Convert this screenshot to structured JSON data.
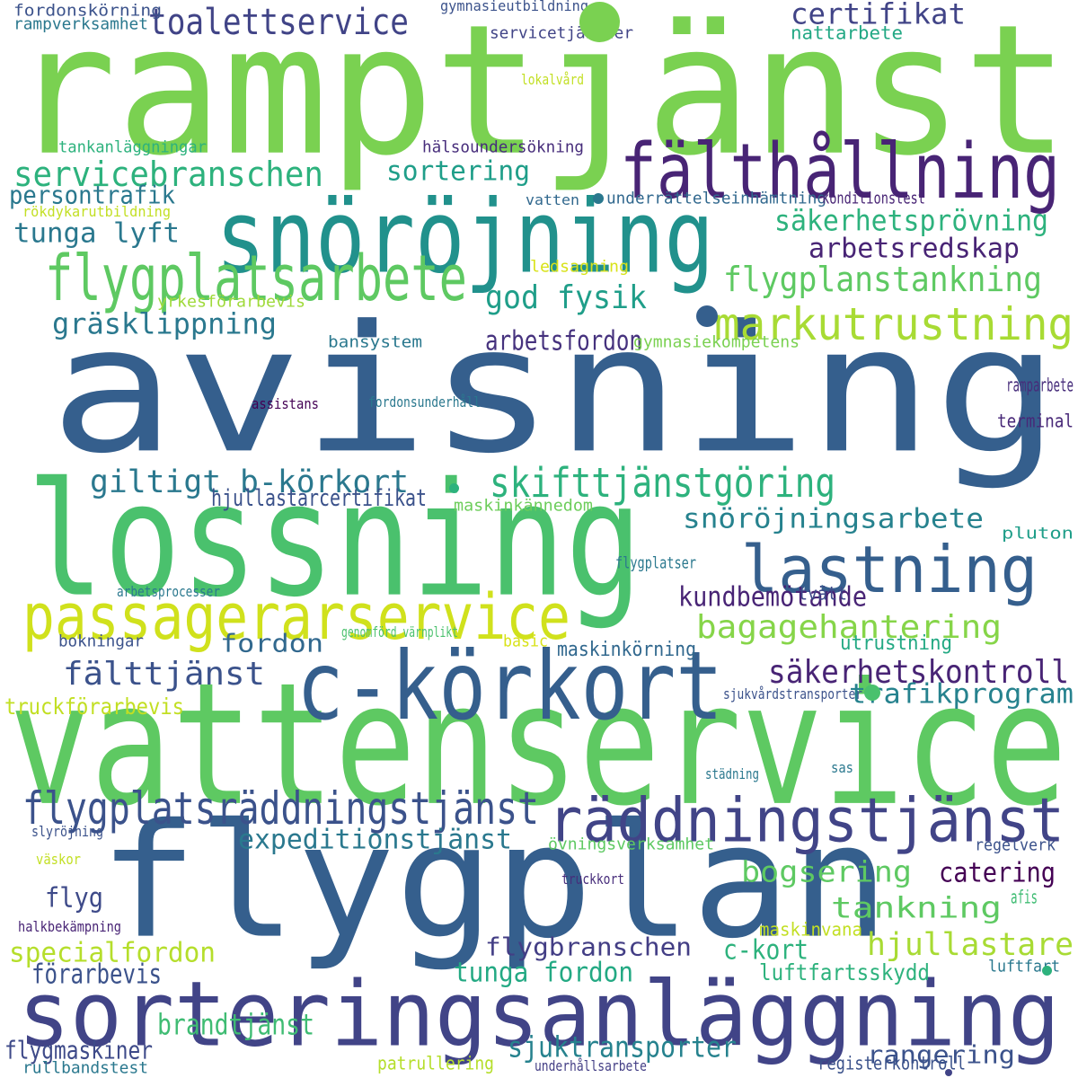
{
  "words": [
    {
      "text": "ramptjänst",
      "color": "#7ad151"
    },
    {
      "text": "avisning",
      "color": "#355f8d"
    },
    {
      "text": "vattenservice",
      "color": "#5ec962"
    },
    {
      "text": "lossning",
      "color": "#4ac16d"
    },
    {
      "text": "flygplan",
      "color": "#355f8d"
    },
    {
      "text": "sorteringsanläggning",
      "color": "#414487"
    },
    {
      "text": "snöröjning",
      "color": "#21918c"
    },
    {
      "text": "c-körkort",
      "color": "#355f8d"
    },
    {
      "text": "fälthållning",
      "color": "#482475"
    },
    {
      "text": "flygplatsarbete",
      "color": "#5ec962"
    },
    {
      "text": "passagerarservice",
      "color": "#d0e11c"
    },
    {
      "text": "räddningstjänst",
      "color": "#414487"
    },
    {
      "text": "lastning",
      "color": "#355f8d"
    },
    {
      "text": "markutrustning",
      "color": "#a8db34"
    },
    {
      "text": "flygplatsräddningstjänst",
      "color": "#3b528b"
    },
    {
      "text": "skifttjänstgöring",
      "color": "#2db27d"
    },
    {
      "text": "servicebranschen",
      "color": "#2db27d"
    },
    {
      "text": "toalettservice",
      "color": "#414487"
    },
    {
      "text": "flygplanstankning",
      "color": "#5ec962"
    },
    {
      "text": "certifikat",
      "color": "#414487"
    },
    {
      "text": "säkerhetsprövning",
      "color": "#2db27d"
    },
    {
      "text": "arbetsredskap",
      "color": "#482475"
    },
    {
      "text": "god fysik",
      "color": "#1f9e89"
    },
    {
      "text": "tunga lyft",
      "color": "#2a788e"
    },
    {
      "text": "persontrafik",
      "color": "#2a788e"
    },
    {
      "text": "gräsklippning",
      "color": "#2a788e"
    },
    {
      "text": "sortering",
      "color": "#1f9e89"
    },
    {
      "text": "arbetsfordon",
      "color": "#46327e"
    },
    {
      "text": "giltigt b-körkort",
      "color": "#2a788e"
    },
    {
      "text": "snöröjningsarbete",
      "color": "#26828e"
    },
    {
      "text": "bagagehantering",
      "color": "#86d549"
    },
    {
      "text": "kundbemötande",
      "color": "#482475"
    },
    {
      "text": "fordon",
      "color": "#31688e"
    },
    {
      "text": "fälttjänst",
      "color": "#3b528b"
    },
    {
      "text": "säkerhetskontroll",
      "color": "#482475"
    },
    {
      "text": "trafikprogram",
      "color": "#26828e"
    },
    {
      "text": "expeditionstjänst",
      "color": "#2a788e"
    },
    {
      "text": "bogsering",
      "color": "#5ec962"
    },
    {
      "text": "tankning",
      "color": "#5ec962"
    },
    {
      "text": "catering",
      "color": "#440154"
    },
    {
      "text": "flyg",
      "color": "#3e4a89"
    },
    {
      "text": "flygbranschen",
      "color": "#433e85"
    },
    {
      "text": "c-kort",
      "color": "#2db27d"
    },
    {
      "text": "hjullastare",
      "color": "#a8db34"
    },
    {
      "text": "specialfordon",
      "color": "#b5de2b"
    },
    {
      "text": "förarbevis",
      "color": "#3b528b"
    },
    {
      "text": "tunga fordon",
      "color": "#23a983"
    },
    {
      "text": "luftfartsskydd",
      "color": "#2db27d"
    },
    {
      "text": "brandtjänst",
      "color": "#3fbc73"
    },
    {
      "text": "sjuktransporter",
      "color": "#26828e"
    },
    {
      "text": "rangering",
      "color": "#3b528b"
    },
    {
      "text": "flygmaskiner",
      "color": "#3e4a89"
    },
    {
      "text": "hjullastarcertifikat",
      "color": "#3b528b"
    },
    {
      "text": "utrustning",
      "color": "#23a983"
    },
    {
      "text": "maskinkörning",
      "color": "#31688e"
    },
    {
      "text": "truckförarbevis",
      "color": "#c2df23"
    },
    {
      "text": "fordonskörning",
      "color": "#3b528b"
    },
    {
      "text": "rampverksamhet",
      "color": "#2a788e"
    },
    {
      "text": "gymnasieutbildning",
      "color": "#3b528b"
    },
    {
      "text": "servicetjänster",
      "color": "#414487"
    },
    {
      "text": "nattarbete",
      "color": "#22a884"
    },
    {
      "text": "lokalvård",
      "color": "#c2df23"
    },
    {
      "text": "tankanläggningar",
      "color": "#2db27d"
    },
    {
      "text": "hälsoundersökning",
      "color": "#472d7b"
    },
    {
      "text": "underrättelseinhämtning",
      "color": "#31688e"
    },
    {
      "text": "konditionstest",
      "color": "#482475"
    },
    {
      "text": "vatten",
      "color": "#31688e"
    },
    {
      "text": "rökdykarutbildning",
      "color": "#c2df23"
    },
    {
      "text": "ledsagning",
      "color": "#d8e219"
    },
    {
      "text": "yrkesförarbevis",
      "color": "#9fda3a"
    },
    {
      "text": "bansystem",
      "color": "#2a788e"
    },
    {
      "text": "gymnasiekompetens",
      "color": "#7ad151"
    },
    {
      "text": "ramparbete",
      "color": "#472d7b"
    },
    {
      "text": "terminal",
      "color": "#482878"
    },
    {
      "text": "assistans",
      "color": "#440154"
    },
    {
      "text": "fordonsunderhåll",
      "color": "#2a788e"
    },
    {
      "text": "maskinkännedom",
      "color": "#6ccd5a"
    },
    {
      "text": "pluton",
      "color": "#1f9e89"
    },
    {
      "text": "flygplatser",
      "color": "#2a788e"
    },
    {
      "text": "arbetsprocesser",
      "color": "#2a788e"
    },
    {
      "text": "tvätt",
      "color": "#3e4a89"
    },
    {
      "text": "bokningar",
      "color": "#3b528b"
    },
    {
      "text": "genomförd värnplikt",
      "color": "#4ac16d"
    },
    {
      "text": "basic",
      "color": "#d8e219"
    },
    {
      "text": "sjukvårdstransporter",
      "color": "#3b528b"
    },
    {
      "text": "städning",
      "color": "#2a788e"
    },
    {
      "text": "sas",
      "color": "#2a788e"
    },
    {
      "text": "slyröjning",
      "color": "#3b528b"
    },
    {
      "text": "övningsverksamhet",
      "color": "#5ec962"
    },
    {
      "text": "regelverk",
      "color": "#3b528b"
    },
    {
      "text": "väskor",
      "color": "#c2df23"
    },
    {
      "text": "truckkort",
      "color": "#472d7b"
    },
    {
      "text": "afis",
      "color": "#3fbc73"
    },
    {
      "text": "halkbekämpning",
      "color": "#482475"
    },
    {
      "text": "maskinvana",
      "color": "#c2df23"
    },
    {
      "text": "luftfart",
      "color": "#2a788e"
    },
    {
      "text": "rullbandstest",
      "color": "#2a788e"
    },
    {
      "text": "patrullering",
      "color": "#b5de2b"
    },
    {
      "text": "underhållsarbete",
      "color": "#433e85"
    },
    {
      "text": "registerkontroll",
      "color": "#3b528b"
    }
  ],
  "dots": [
    {
      "color": "#7ad151"
    },
    {
      "color": "#355f8d"
    },
    {
      "color": "#2db27d"
    },
    {
      "color": "#4ac16d"
    },
    {
      "color": "#2a788e"
    },
    {
      "color": "#2db27d"
    },
    {
      "color": "#414487"
    }
  ]
}
